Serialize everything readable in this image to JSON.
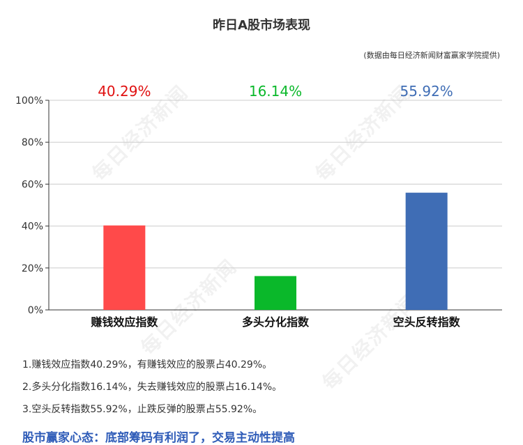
{
  "title": "昨日A股市场表现",
  "source": "(数据由每日经济新闻财富赢家学院提供)",
  "watermark": "每日经济新闻",
  "chart_data": {
    "type": "bar",
    "categories": [
      "赚钱效应指数",
      "多头分化指数",
      "空头反转指数"
    ],
    "values": [
      40.29,
      16.14,
      55.92
    ],
    "value_labels": [
      "40.29%",
      "16.14%",
      "55.92%"
    ],
    "bar_colors": [
      "#ff4a4a",
      "#0ab82a",
      "#3f6db5"
    ],
    "label_colors": [
      "#e01010",
      "#0ab82a",
      "#3f6db5"
    ],
    "yticks": [
      "0%",
      "20%",
      "40%",
      "60%",
      "80%",
      "100%"
    ],
    "ylim": [
      0,
      100
    ],
    "grid": true,
    "legend": "none"
  },
  "notes": [
    "1.赚钱效应指数40.29%，有赚钱效应的股票占40.29%。",
    "2.多头分化指数16.14%，失去赚钱效应的股票占16.14%。",
    "3.空头反转指数55.92%，止跌反弹的股票占55.92%。"
  ],
  "mood": "股市赢家心态：底部筹码有利润了，交易主动性提高"
}
